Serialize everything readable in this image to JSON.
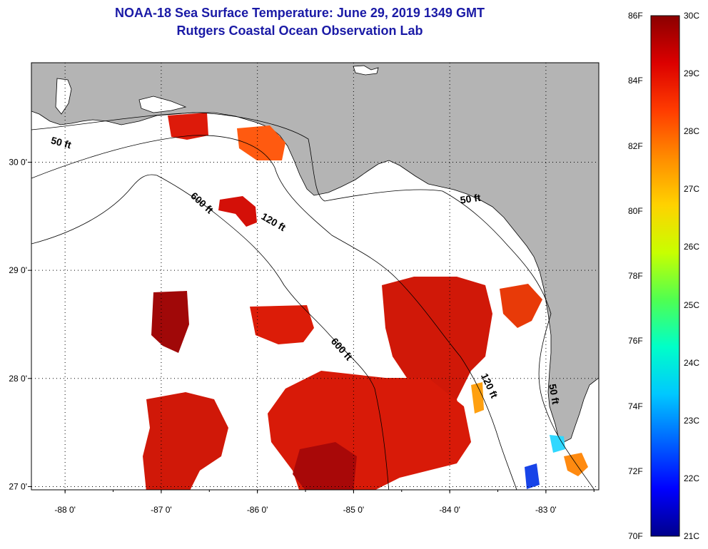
{
  "title": "NOAA-18 Sea Surface Temperature:  June 29, 2019 1349 GMT",
  "subtitle": "Rutgers Coastal Ocean Observation Lab",
  "map": {
    "lon_range": [
      -88.35,
      -82.45
    ],
    "lat_range": [
      26.97,
      30.92
    ],
    "x_ticks": [
      {
        "v": -88,
        "label": "-88 0'"
      },
      {
        "v": -87,
        "label": "-87 0'"
      },
      {
        "v": -86,
        "label": "-86 0'"
      },
      {
        "v": -85,
        "label": "-85 0'"
      },
      {
        "v": -84,
        "label": "-84 0'"
      },
      {
        "v": -83,
        "label": "-83 0'"
      }
    ],
    "y_ticks": [
      {
        "v": 30,
        "label": "30 0'"
      },
      {
        "v": 29,
        "label": "29 0'"
      },
      {
        "v": 28,
        "label": "28 0'"
      },
      {
        "v": 27,
        "label": "27 0'"
      }
    ],
    "land_color": "#b4b4b4",
    "water_color": "#ffffff",
    "grid": "dotted",
    "depth_labels": [
      {
        "text": "50 ft",
        "lon": -88.05,
        "lat": 30.15,
        "rot": 15
      },
      {
        "text": "50 ft",
        "lon": -83.78,
        "lat": 29.63,
        "rot": -8
      },
      {
        "text": "50 ft",
        "lon": -82.95,
        "lat": 27.85,
        "rot": 80
      },
      {
        "text": "120 ft",
        "lon": -85.85,
        "lat": 29.42,
        "rot": 30
      },
      {
        "text": "120 ft",
        "lon": -83.62,
        "lat": 27.92,
        "rot": 65
      },
      {
        "text": "600 ft",
        "lon": -86.6,
        "lat": 29.6,
        "rot": 42
      },
      {
        "text": "600 ft",
        "lon": -85.15,
        "lat": 28.25,
        "rot": 48
      }
    ]
  },
  "colorbar": {
    "colors": [
      "#00008b",
      "#0000ff",
      "#0064ff",
      "#00c8ff",
      "#00ffc8",
      "#50ff50",
      "#c8ff00",
      "#ffd200",
      "#ff8c00",
      "#ff3c00",
      "#dc0000",
      "#8b0000"
    ],
    "f_labels": [
      {
        "v": 86,
        "label": "86F"
      },
      {
        "v": 84,
        "label": "84F"
      },
      {
        "v": 82,
        "label": "82F"
      },
      {
        "v": 80,
        "label": "80F"
      },
      {
        "v": 78,
        "label": "78F"
      },
      {
        "v": 76,
        "label": "76F"
      },
      {
        "v": 74,
        "label": "74F"
      },
      {
        "v": 72,
        "label": "72F"
      },
      {
        "v": 70,
        "label": "70F"
      }
    ],
    "c_labels": [
      {
        "v": 30,
        "label": "30C"
      },
      {
        "v": 29,
        "label": "29C"
      },
      {
        "v": 28,
        "label": "28C"
      },
      {
        "v": 27,
        "label": "27C"
      },
      {
        "v": 26,
        "label": "26C"
      },
      {
        "v": 25,
        "label": "25C"
      },
      {
        "v": 24,
        "label": "24C"
      },
      {
        "v": 23,
        "label": "23C"
      },
      {
        "v": 22,
        "label": "22C"
      },
      {
        "v": 21,
        "label": "21C"
      }
    ]
  }
}
